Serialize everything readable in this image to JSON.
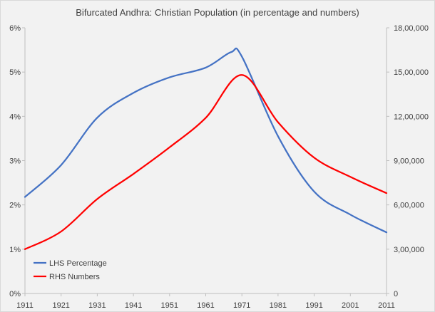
{
  "chart_data": {
    "type": "line",
    "title": "Bifurcated Andhra: Christian Population (in percentage and numbers)",
    "xlabel": "",
    "ylabel_left": "",
    "ylabel_right": "",
    "x": [
      1911,
      1921,
      1931,
      1941,
      1951,
      1961,
      1971,
      1981,
      1991,
      2001,
      2011
    ],
    "x_tick_labels": [
      "1911",
      "1921",
      "1931",
      "1941",
      "1951",
      "1961",
      "1971",
      "1981",
      "1991",
      "2001",
      "2011"
    ],
    "xlim": [
      1911,
      2011
    ],
    "ylim_left": [
      0,
      6
    ],
    "ylim_right": [
      0,
      1800000
    ],
    "left_tick_labels": [
      "0%",
      "1%",
      "2%",
      "3%",
      "4%",
      "5%",
      "6%"
    ],
    "right_tick_labels": [
      "0",
      "3,00,000",
      "6,00,000",
      "9,00,000",
      "12,00,000",
      "15,00,000",
      "18,00,000"
    ],
    "grid": false,
    "legend_position": "bottom-left",
    "series": [
      {
        "name": "LHS Percentage",
        "axis": "left",
        "color": "#4472c4",
        "x": [
          1911,
          1921,
          1931,
          1941,
          1951,
          1961,
          1968,
          1971,
          1981,
          1991,
          2001,
          2011
        ],
        "values": [
          2.18,
          2.9,
          3.97,
          4.53,
          4.88,
          5.1,
          5.45,
          5.35,
          3.55,
          2.3,
          1.78,
          1.38
        ]
      },
      {
        "name": "RHS Numbers",
        "axis": "right",
        "color": "#ff0000",
        "x": [
          1911,
          1921,
          1931,
          1941,
          1951,
          1961,
          1971,
          1981,
          1991,
          2001,
          2011
        ],
        "values": [
          300000,
          420000,
          640000,
          810000,
          990000,
          1190000,
          1480000,
          1160000,
          920000,
          790000,
          680000
        ]
      }
    ]
  }
}
